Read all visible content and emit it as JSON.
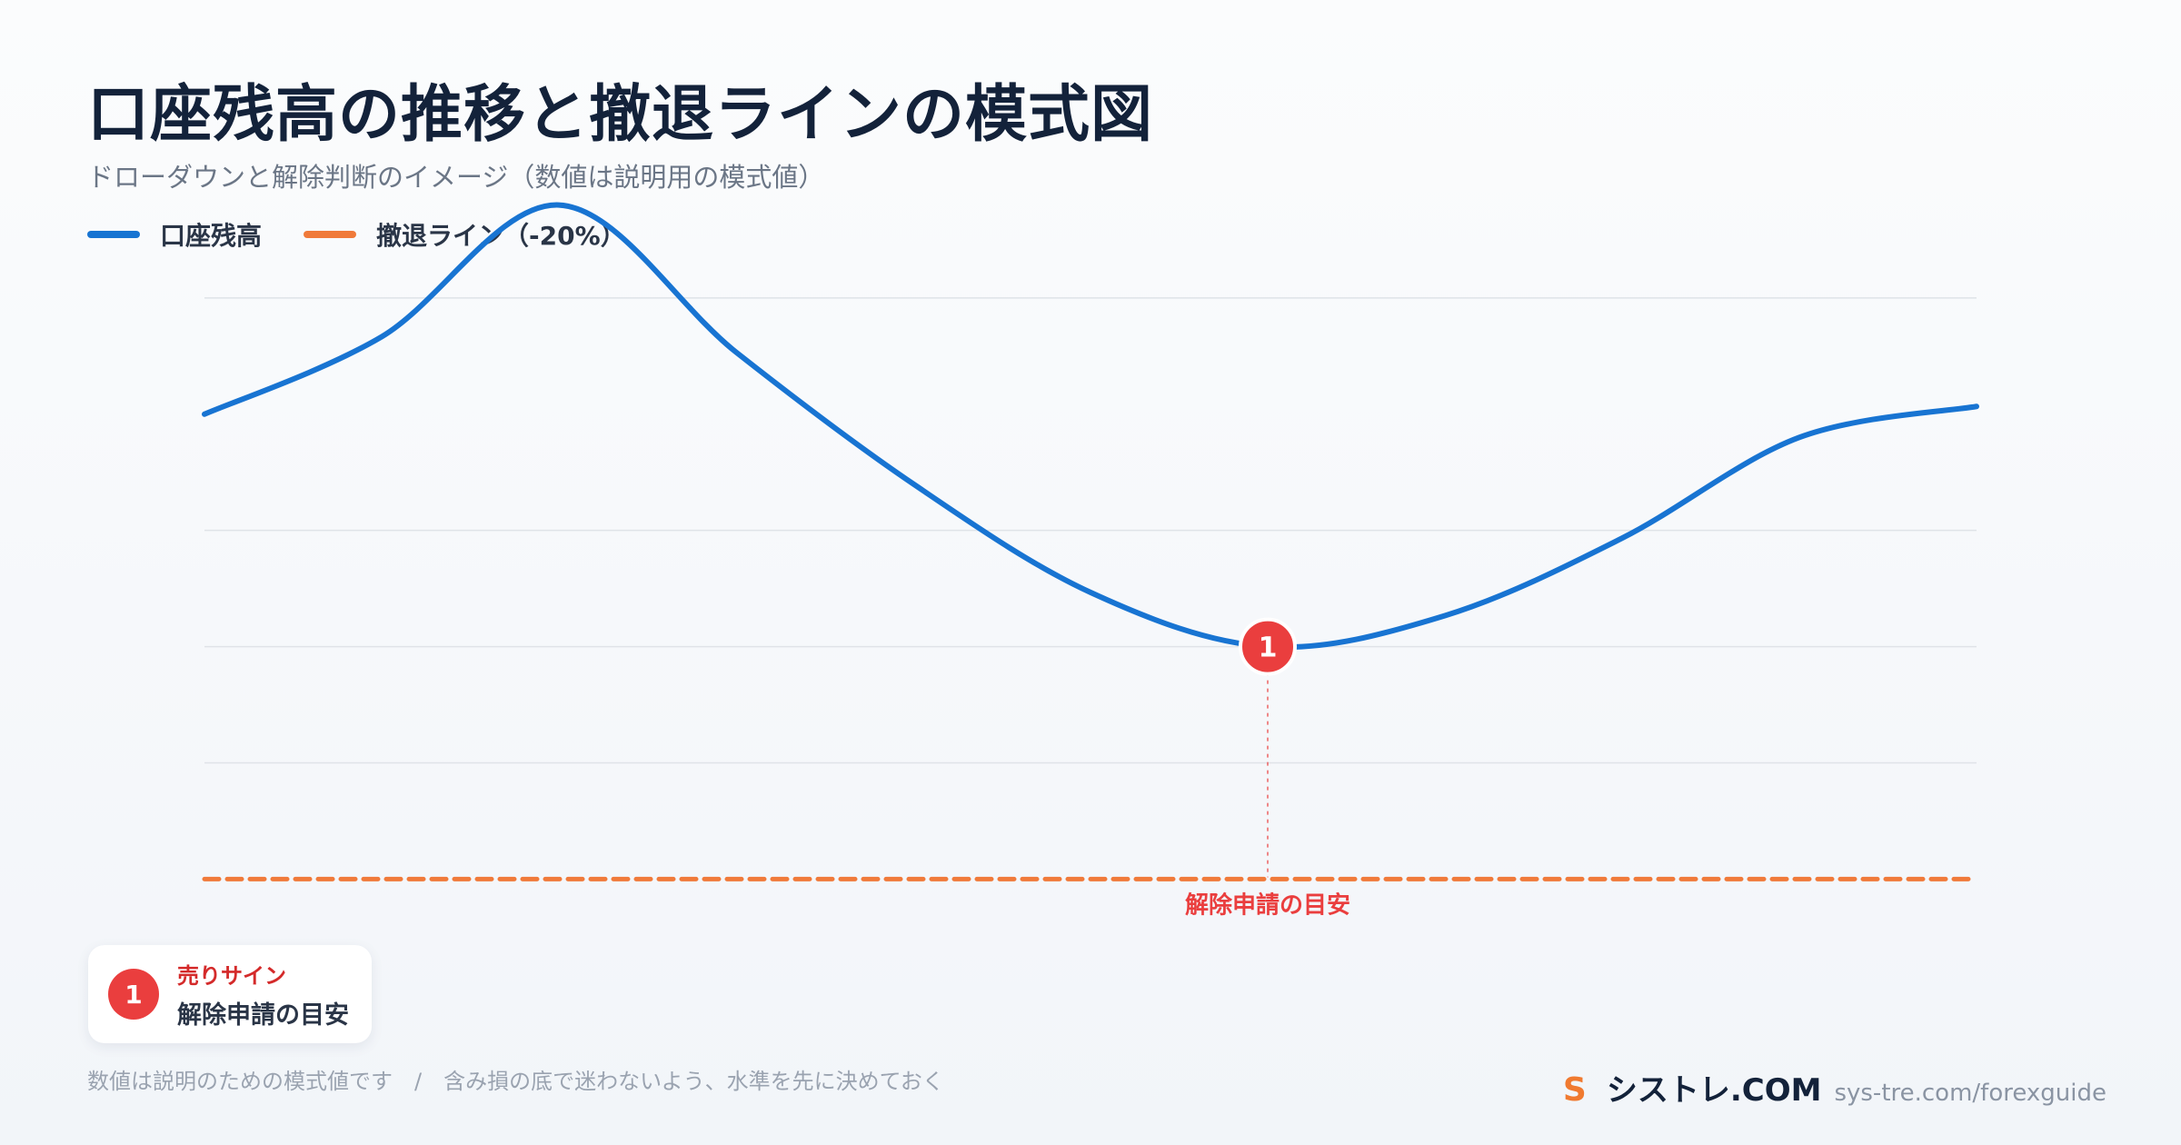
{
  "header": {
    "title": "口座残高の推移と撤退ラインの模式図",
    "subtitle": "ドローダウンと解除判断のイメージ（数値は説明用の模式値）"
  },
  "legend": [
    {
      "label": "口座残高",
      "color": "#1874d2"
    },
    {
      "label": "撤退ライン（-20%）",
      "color": "#f07a3a"
    }
  ],
  "chart_data": {
    "type": "line",
    "series": [
      {
        "name": "口座残高",
        "color": "#1874d2",
        "x": [
          0,
          1,
          2,
          3,
          4,
          5,
          6,
          7,
          8,
          9,
          10
        ],
        "values": [
          100,
          110,
          127,
          108,
          91,
          77,
          70,
          74,
          84,
          97,
          101
        ]
      }
    ],
    "threshold": {
      "name": "撤退ライン（-20%）",
      "value": 40,
      "color": "#f07a3a",
      "style": "dashed"
    },
    "ylim": [
      35,
      130
    ],
    "gridlines": [
      55,
      70,
      85,
      115
    ],
    "annotations": [
      {
        "index": 6,
        "marker": "1",
        "label": "解除申請の目安",
        "color": "#ea3e3e"
      }
    ],
    "xlabel": "",
    "ylabel": ""
  },
  "note_card": {
    "badge": "1",
    "kind": "売りサイン",
    "description": "解除申請の目安"
  },
  "footer": {
    "note": "数値は説明のための模式値です　/　含み損の底で迷わないよう、水準を先に決めておく",
    "brand_logo": "S",
    "brand_name": "シストレ.COM",
    "brand_url": "sys-tre.com/forexguide"
  }
}
